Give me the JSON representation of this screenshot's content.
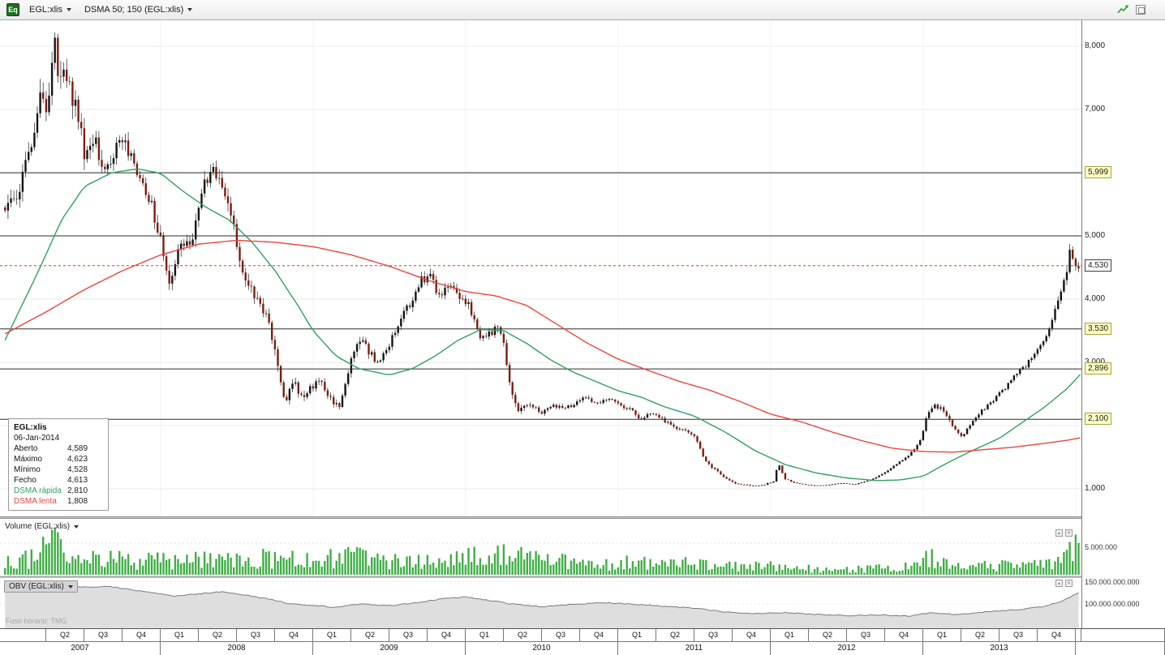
{
  "colors": {
    "up_candle": "#141414",
    "down_candle": "#7e1c10",
    "wick": "#1c1c1c",
    "ma_fast": "#2fa05f",
    "ma_slow": "#e8453c",
    "volume_bar": "#3fae46",
    "obv_line": "#7a7a7a",
    "obv_fill": "#dedede",
    "level_line": "#2b2b2b",
    "last_price_line": "#cf3a31",
    "grid": "#e8e8e8",
    "tag_highlight_bg": "#ffffc4"
  },
  "toolbar": {
    "symbol_icon": "Eq",
    "symbol": "EGL:xlis",
    "indicator": "DSMA 50; 150 (EGL:xlis)"
  },
  "info_box": {
    "title": "EGL:xlis",
    "date": "06-Jan-2014",
    "rows": [
      {
        "label": "Aberto",
        "value": "4,589"
      },
      {
        "label": "Máximo",
        "value": "4,623"
      },
      {
        "label": "Mínimo",
        "value": "4,528"
      },
      {
        "label": "Fecho",
        "value": "4,613"
      },
      {
        "label": "DSMA rápida",
        "value": "2,810",
        "color": "#2fa05f"
      },
      {
        "label": "DSMA lenta",
        "value": "1,808",
        "color": "#e8453c"
      }
    ]
  },
  "volume_panel": {
    "title": "Volume (EGL:xlis)",
    "axis_label": "5.000.000"
  },
  "obv_panel": {
    "title": "OBV (EGL:xlis)",
    "axis_labels": [
      "150.000.000.000",
      "100.000.000.000"
    ]
  },
  "footer": {
    "timezone": "Fuso horário: TMG"
  },
  "price_axis": {
    "labels": [
      {
        "text": "8,000",
        "value": 8000,
        "style": "plain"
      },
      {
        "text": "7,000",
        "value": 7000,
        "style": "plain"
      },
      {
        "text": "5,999",
        "value": 5999,
        "style": "highlight"
      },
      {
        "text": "5,000",
        "value": 5000,
        "style": "plain"
      },
      {
        "text": "4,530",
        "value": 4530,
        "style": "box"
      },
      {
        "text": "4,000",
        "value": 4000,
        "style": "plain"
      },
      {
        "text": "3,530",
        "value": 3530,
        "style": "highlight"
      },
      {
        "text": "3,000",
        "value": 3000,
        "style": "plain"
      },
      {
        "text": "2,896",
        "value": 2896,
        "style": "highlight"
      },
      {
        "text": "2,100",
        "value": 2100,
        "style": "highlight"
      },
      {
        "text": "1,000",
        "value": 1000,
        "style": "plain"
      }
    ]
  },
  "x_axis": {
    "quarters": [
      "Q2",
      "Q3",
      "Q4",
      "Q1",
      "Q2",
      "Q3",
      "Q4",
      "Q1",
      "Q2",
      "Q3",
      "Q4",
      "Q1",
      "Q2",
      "Q3",
      "Q4",
      "Q1",
      "Q2",
      "Q3",
      "Q4",
      "Q1",
      "Q2",
      "Q3",
      "Q4",
      "Q1",
      "Q2",
      "Q3",
      "Q4"
    ],
    "years": [
      "2007",
      "2008",
      "2009",
      "2010",
      "2011",
      "2012",
      "2013"
    ]
  },
  "chart_data": {
    "type": "candlestick",
    "title": "EGL:xlis weekly candlesticks with DSMA 50/150 overlays, volume and OBV sub-panels",
    "timeframe": "weekly",
    "t_start": 2006.98,
    "t_end": 2014.03,
    "price_range": [
      590,
      8410
    ],
    "levels": [
      5999,
      5000,
      3530,
      2896,
      2100
    ],
    "last_price_line": 4530,
    "last_close": 4613,
    "close_path": [
      [
        2006.98,
        5450
      ],
      [
        2007.04,
        5600
      ],
      [
        2007.1,
        5900
      ],
      [
        2007.16,
        6600
      ],
      [
        2007.21,
        7100
      ],
      [
        2007.25,
        6850
      ],
      [
        2007.3,
        8300
      ],
      [
        2007.33,
        7250
      ],
      [
        2007.38,
        7600
      ],
      [
        2007.44,
        7050
      ],
      [
        2007.5,
        6300
      ],
      [
        2007.57,
        6500
      ],
      [
        2007.63,
        6050
      ],
      [
        2007.7,
        6350
      ],
      [
        2007.76,
        6500
      ],
      [
        2007.82,
        6100
      ],
      [
        2007.88,
        5750
      ],
      [
        2007.95,
        5400
      ],
      [
        2008.02,
        4700
      ],
      [
        2008.06,
        4150
      ],
      [
        2008.12,
        4800
      ],
      [
        2008.2,
        4900
      ],
      [
        2008.28,
        5750
      ],
      [
        2008.34,
        6000
      ],
      [
        2008.42,
        5700
      ],
      [
        2008.48,
        5100
      ],
      [
        2008.54,
        4350
      ],
      [
        2008.6,
        4100
      ],
      [
        2008.66,
        3900
      ],
      [
        2008.72,
        3500
      ],
      [
        2008.78,
        2750
      ],
      [
        2008.82,
        2400
      ],
      [
        2008.87,
        2700
      ],
      [
        2008.92,
        2450
      ],
      [
        2008.98,
        2600
      ],
      [
        2009.05,
        2700
      ],
      [
        2009.12,
        2400
      ],
      [
        2009.18,
        2300
      ],
      [
        2009.25,
        3100
      ],
      [
        2009.3,
        3400
      ],
      [
        2009.36,
        3200
      ],
      [
        2009.42,
        3000
      ],
      [
        2009.5,
        3300
      ],
      [
        2009.58,
        3700
      ],
      [
        2009.65,
        4000
      ],
      [
        2009.71,
        4300
      ],
      [
        2009.77,
        4400
      ],
      [
        2009.82,
        4000
      ],
      [
        2009.88,
        4250
      ],
      [
        2009.95,
        4100
      ],
      [
        2010.02,
        3900
      ],
      [
        2010.08,
        3450
      ],
      [
        2010.14,
        3400
      ],
      [
        2010.19,
        3550
      ],
      [
        2010.24,
        3400
      ],
      [
        2010.29,
        2600
      ],
      [
        2010.34,
        2250
      ],
      [
        2010.42,
        2350
      ],
      [
        2010.5,
        2200
      ],
      [
        2010.57,
        2350
      ],
      [
        2010.64,
        2250
      ],
      [
        2010.72,
        2350
      ],
      [
        2010.79,
        2450
      ],
      [
        2010.86,
        2350
      ],
      [
        2010.93,
        2420
      ],
      [
        2011.0,
        2350
      ],
      [
        2011.08,
        2250
      ],
      [
        2011.15,
        2100
      ],
      [
        2011.22,
        2220
      ],
      [
        2011.3,
        2080
      ],
      [
        2011.38,
        1980
      ],
      [
        2011.45,
        1900
      ],
      [
        2011.5,
        1820
      ],
      [
        2011.56,
        1500
      ],
      [
        2011.62,
        1320
      ],
      [
        2011.7,
        1180
      ],
      [
        2011.78,
        1080
      ],
      [
        2011.86,
        1050
      ],
      [
        2011.95,
        1060
      ],
      [
        2012.02,
        1120
      ],
      [
        2012.05,
        1420
      ],
      [
        2012.09,
        1160
      ],
      [
        2012.16,
        1090
      ],
      [
        2012.25,
        1060
      ],
      [
        2012.35,
        1050
      ],
      [
        2012.45,
        1090
      ],
      [
        2012.55,
        1070
      ],
      [
        2012.65,
        1140
      ],
      [
        2012.74,
        1240
      ],
      [
        2012.82,
        1380
      ],
      [
        2012.9,
        1520
      ],
      [
        2012.97,
        1700
      ],
      [
        2013.03,
        2180
      ],
      [
        2013.08,
        2330
      ],
      [
        2013.14,
        2220
      ],
      [
        2013.2,
        1980
      ],
      [
        2013.26,
        1820
      ],
      [
        2013.32,
        2080
      ],
      [
        2013.39,
        2250
      ],
      [
        2013.46,
        2400
      ],
      [
        2013.53,
        2580
      ],
      [
        2013.6,
        2780
      ],
      [
        2013.66,
        2920
      ],
      [
        2013.72,
        3080
      ],
      [
        2013.78,
        3300
      ],
      [
        2013.84,
        3650
      ],
      [
        2013.9,
        4050
      ],
      [
        2013.94,
        4450
      ],
      [
        2013.97,
        4850
      ],
      [
        2013.99,
        4500
      ],
      [
        2014.01,
        4480
      ],
      [
        2014.03,
        4613
      ]
    ],
    "vol_path": [
      [
        2006.98,
        1.2
      ],
      [
        2007.2,
        1.5
      ],
      [
        2007.3,
        1.8
      ],
      [
        2007.45,
        1.4
      ],
      [
        2007.7,
        1.1
      ],
      [
        2008.0,
        1.2
      ],
      [
        2008.3,
        1.1
      ],
      [
        2008.6,
        1.2
      ],
      [
        2008.8,
        1.5
      ],
      [
        2009.1,
        1.1
      ],
      [
        2009.3,
        1.2
      ],
      [
        2009.6,
        0.9
      ],
      [
        2009.9,
        0.9
      ],
      [
        2010.1,
        1.0
      ],
      [
        2010.3,
        1.3
      ],
      [
        2010.5,
        0.8
      ],
      [
        2010.8,
        0.7
      ],
      [
        2011.1,
        0.7
      ],
      [
        2011.4,
        0.8
      ],
      [
        2011.6,
        0.9
      ],
      [
        2011.8,
        0.5
      ],
      [
        2011.95,
        0.25
      ],
      [
        2012.1,
        0.35
      ],
      [
        2012.3,
        0.2
      ],
      [
        2012.6,
        0.22
      ],
      [
        2012.85,
        0.35
      ],
      [
        2013.0,
        0.7
      ],
      [
        2013.05,
        1.0
      ],
      [
        2013.2,
        0.7
      ],
      [
        2013.4,
        0.6
      ],
      [
        2013.6,
        0.6
      ],
      [
        2013.8,
        0.7
      ],
      [
        2013.93,
        0.9
      ],
      [
        2014.0,
        0.9
      ],
      [
        2014.03,
        0.7
      ]
    ],
    "ma_fast_path": [
      [
        2006.98,
        3350
      ],
      [
        2007.2,
        4450
      ],
      [
        2007.35,
        5250
      ],
      [
        2007.5,
        5780
      ],
      [
        2007.68,
        6000
      ],
      [
        2007.85,
        6060
      ],
      [
        2008.0,
        5990
      ],
      [
        2008.15,
        5700
      ],
      [
        2008.3,
        5450
      ],
      [
        2008.45,
        5250
      ],
      [
        2008.6,
        4900
      ],
      [
        2008.75,
        4450
      ],
      [
        2008.9,
        3900
      ],
      [
        2009.0,
        3500
      ],
      [
        2009.15,
        3100
      ],
      [
        2009.3,
        2900
      ],
      [
        2009.5,
        2800
      ],
      [
        2009.65,
        2900
      ],
      [
        2009.8,
        3100
      ],
      [
        2009.95,
        3350
      ],
      [
        2010.1,
        3520
      ],
      [
        2010.25,
        3500
      ],
      [
        2010.4,
        3300
      ],
      [
        2010.55,
        3050
      ],
      [
        2010.7,
        2850
      ],
      [
        2010.85,
        2700
      ],
      [
        2011.0,
        2550
      ],
      [
        2011.15,
        2450
      ],
      [
        2011.3,
        2300
      ],
      [
        2011.5,
        2150
      ],
      [
        2011.7,
        1900
      ],
      [
        2011.9,
        1600
      ],
      [
        2012.1,
        1380
      ],
      [
        2012.3,
        1250
      ],
      [
        2012.5,
        1170
      ],
      [
        2012.7,
        1130
      ],
      [
        2012.85,
        1140
      ],
      [
        2013.0,
        1200
      ],
      [
        2013.15,
        1400
      ],
      [
        2013.3,
        1580
      ],
      [
        2013.5,
        1800
      ],
      [
        2013.65,
        2050
      ],
      [
        2013.8,
        2300
      ],
      [
        2013.95,
        2600
      ],
      [
        2014.03,
        2810
      ]
    ],
    "ma_slow_path": [
      [
        2006.98,
        3450
      ],
      [
        2007.25,
        3800
      ],
      [
        2007.5,
        4150
      ],
      [
        2007.75,
        4450
      ],
      [
        2008.0,
        4700
      ],
      [
        2008.25,
        4870
      ],
      [
        2008.5,
        4930
      ],
      [
        2008.75,
        4900
      ],
      [
        2009.0,
        4830
      ],
      [
        2009.25,
        4700
      ],
      [
        2009.5,
        4520
      ],
      [
        2009.75,
        4300
      ],
      [
        2010.0,
        4120
      ],
      [
        2010.2,
        4050
      ],
      [
        2010.4,
        3900
      ],
      [
        2010.6,
        3600
      ],
      [
        2010.8,
        3300
      ],
      [
        2011.0,
        3050
      ],
      [
        2011.2,
        2870
      ],
      [
        2011.4,
        2700
      ],
      [
        2011.6,
        2560
      ],
      [
        2011.8,
        2380
      ],
      [
        2012.0,
        2180
      ],
      [
        2012.2,
        2060
      ],
      [
        2012.4,
        1900
      ],
      [
        2012.6,
        1760
      ],
      [
        2012.8,
        1640
      ],
      [
        2013.0,
        1590
      ],
      [
        2013.2,
        1580
      ],
      [
        2013.4,
        1620
      ],
      [
        2013.6,
        1660
      ],
      [
        2013.8,
        1720
      ],
      [
        2013.95,
        1770
      ],
      [
        2014.03,
        1808
      ]
    ],
    "volume_profile": [
      [
        2006.98,
        2.0
      ],
      [
        2007.15,
        2.6
      ],
      [
        2007.28,
        6.8
      ],
      [
        2007.35,
        3.2
      ],
      [
        2007.5,
        2.6
      ],
      [
        2007.7,
        2.4
      ],
      [
        2007.9,
        2.2
      ],
      [
        2008.1,
        2.4
      ],
      [
        2008.3,
        2.2
      ],
      [
        2008.55,
        2.6
      ],
      [
        2008.8,
        2.8
      ],
      [
        2009.0,
        2.2
      ],
      [
        2009.25,
        2.8
      ],
      [
        2009.5,
        2.2
      ],
      [
        2009.75,
        2.4
      ],
      [
        2010.0,
        2.6
      ],
      [
        2010.3,
        3.0
      ],
      [
        2010.5,
        2.2
      ],
      [
        2010.8,
        1.8
      ],
      [
        2011.0,
        1.9
      ],
      [
        2011.3,
        1.6
      ],
      [
        2011.55,
        1.9
      ],
      [
        2011.8,
        1.2
      ],
      [
        2012.0,
        1.4
      ],
      [
        2012.3,
        0.9
      ],
      [
        2012.6,
        0.9
      ],
      [
        2012.9,
        1.2
      ],
      [
        2013.05,
        2.6
      ],
      [
        2013.2,
        1.3
      ],
      [
        2013.45,
        1.4
      ],
      [
        2013.7,
        1.6
      ],
      [
        2013.9,
        2.2
      ],
      [
        2014.0,
        4.8
      ],
      [
        2014.03,
        3.5
      ]
    ],
    "obv_path": [
      [
        2006.98,
        138
      ],
      [
        2007.15,
        144
      ],
      [
        2007.3,
        150
      ],
      [
        2007.4,
        143
      ],
      [
        2007.5,
        138
      ],
      [
        2007.65,
        140
      ],
      [
        2007.8,
        133
      ],
      [
        2007.95,
        125
      ],
      [
        2008.1,
        118
      ],
      [
        2008.25,
        123
      ],
      [
        2008.4,
        128
      ],
      [
        2008.55,
        120
      ],
      [
        2008.7,
        112
      ],
      [
        2008.85,
        100
      ],
      [
        2009.0,
        97
      ],
      [
        2009.15,
        92
      ],
      [
        2009.3,
        100
      ],
      [
        2009.5,
        96
      ],
      [
        2009.7,
        104
      ],
      [
        2009.85,
        112
      ],
      [
        2010.0,
        116
      ],
      [
        2010.15,
        108
      ],
      [
        2010.3,
        100
      ],
      [
        2010.5,
        94
      ],
      [
        2010.7,
        99
      ],
      [
        2010.9,
        103
      ],
      [
        2011.1,
        99
      ],
      [
        2011.3,
        95
      ],
      [
        2011.5,
        90
      ],
      [
        2011.7,
        82
      ],
      [
        2011.9,
        78
      ],
      [
        2012.1,
        80
      ],
      [
        2012.3,
        76
      ],
      [
        2012.5,
        73
      ],
      [
        2012.7,
        75
      ],
      [
        2012.9,
        72
      ],
      [
        2013.05,
        80
      ],
      [
        2013.2,
        76
      ],
      [
        2013.35,
        80
      ],
      [
        2013.5,
        84
      ],
      [
        2013.65,
        88
      ],
      [
        2013.8,
        95
      ],
      [
        2013.9,
        105
      ],
      [
        2014.0,
        122
      ],
      [
        2014.03,
        128
      ]
    ]
  }
}
